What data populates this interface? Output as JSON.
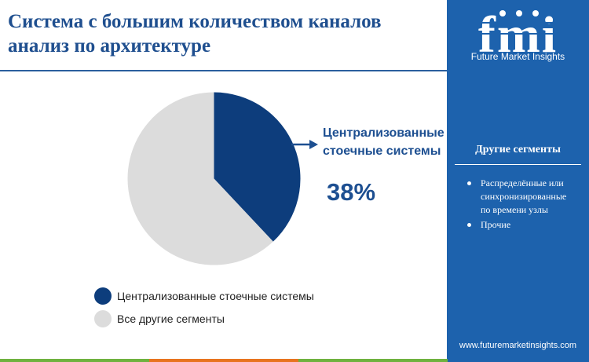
{
  "title": "Система с большим количеством каналов анализ по архитектуре",
  "brand": {
    "logo_letters": "fmi",
    "name": "Future Market Insights",
    "website": "www.futuremarketinsights.com"
  },
  "sidebar": {
    "heading": "Другие сегменты",
    "items": [
      "Распределённые или синхронизированные по времени узлы",
      "Прочие"
    ]
  },
  "callout": {
    "label": "Централизованные стоечные системы",
    "value": "38%"
  },
  "colors": {
    "primary": "#0d3d7c",
    "other": "#dcdcdc",
    "sidebar": "#1d62ad",
    "accent_green": "#6fb23f",
    "accent_orange": "#e8731f"
  },
  "chart_data": {
    "type": "pie",
    "categories": [
      "Централизованные стоечные системы",
      "Все другие сегменты"
    ],
    "values": [
      38,
      62
    ],
    "legend_position": "bottom-left"
  }
}
